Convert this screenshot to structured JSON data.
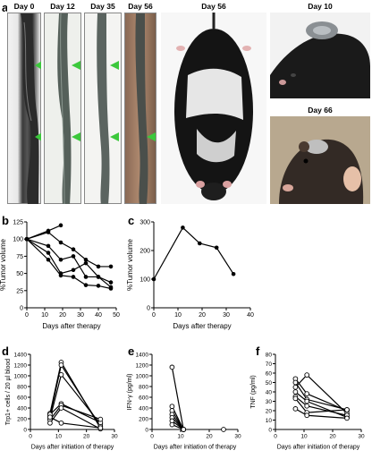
{
  "panels": {
    "a": "a",
    "b": "b",
    "c": "c",
    "d": "d",
    "e": "e",
    "f": "f"
  },
  "photos": {
    "day0": "Day 0",
    "day12": "Day 12",
    "day35": "Day 35",
    "day56_tail": "Day 56",
    "day56_mouse": "Day 56",
    "day10": "Day 10",
    "day66": "Day 66"
  },
  "colors": {
    "arrow": "#3cc83c",
    "fur_black": "#141414",
    "fur_white": "#e6e6e6",
    "background_glove": "#f2f2f2"
  },
  "chart_data": [
    {
      "id": "b",
      "type": "line",
      "xlabel": "Days after therapy",
      "ylabel": "%Tumor volume",
      "xlim": [
        0,
        50
      ],
      "ylim": [
        0,
        125
      ],
      "xticks": [
        0,
        10,
        20,
        30,
        40,
        50
      ],
      "yticks": [
        0,
        25,
        50,
        75,
        100,
        125
      ],
      "marker": "filled",
      "series": [
        {
          "x": [
            0,
            12,
            19
          ],
          "y": [
            100,
            112,
            120
          ]
        },
        {
          "x": [
            0,
            12,
            19,
            26,
            33,
            40,
            47
          ],
          "y": [
            100,
            110,
            95,
            85,
            70,
            60,
            60
          ]
        },
        {
          "x": [
            0,
            12,
            19,
            26,
            33,
            40,
            47
          ],
          "y": [
            100,
            90,
            70,
            75,
            45,
            45,
            30
          ]
        },
        {
          "x": [
            0,
            12,
            19,
            26,
            33,
            40,
            47
          ],
          "y": [
            100,
            80,
            50,
            55,
            65,
            45,
            37
          ]
        },
        {
          "x": [
            0,
            12,
            19,
            26,
            33,
            40,
            47
          ],
          "y": [
            100,
            70,
            47,
            45,
            33,
            32,
            28
          ]
        }
      ]
    },
    {
      "id": "c",
      "type": "line",
      "xlabel": "Days after therapy",
      "ylabel": "%Tumor volume",
      "xlim": [
        0,
        40
      ],
      "ylim": [
        0,
        300
      ],
      "xticks": [
        0,
        10,
        20,
        30,
        40
      ],
      "yticks": [
        0,
        100,
        200,
        300
      ],
      "marker": "filled",
      "series": [
        {
          "x": [
            0,
            12,
            19,
            26,
            33
          ],
          "y": [
            100,
            280,
            225,
            210,
            118
          ]
        }
      ]
    },
    {
      "id": "d",
      "type": "line",
      "xlabel": "Days after initiation of therapy",
      "ylabel": "Trp1+ cells / 20 µl blood",
      "xlim": [
        0,
        30
      ],
      "ylim": [
        0,
        1400
      ],
      "xticks": [
        0,
        10,
        20,
        30
      ],
      "yticks": [
        0,
        200,
        400,
        600,
        800,
        1000,
        1200,
        1400
      ],
      "marker": "open",
      "series": [
        {
          "x": [
            7,
            11,
            25
          ],
          "y": [
            300,
            1250,
            25
          ]
        },
        {
          "x": [
            7,
            11,
            25
          ],
          "y": [
            250,
            1200,
            60
          ]
        },
        {
          "x": [
            7,
            11,
            25
          ],
          "y": [
            200,
            1020,
            100
          ]
        },
        {
          "x": [
            7,
            11,
            25
          ],
          "y": [
            280,
            480,
            130
          ]
        },
        {
          "x": [
            7,
            11,
            25
          ],
          "y": [
            180,
            450,
            190
          ]
        },
        {
          "x": [
            7,
            11,
            25
          ],
          "y": [
            120,
            400,
            10
          ]
        },
        {
          "x": [
            7,
            11,
            25
          ],
          "y": [
            230,
            120,
            30
          ]
        }
      ]
    },
    {
      "id": "e",
      "type": "line",
      "xlabel": "Days after initiation of therapy",
      "ylabel": "IFN-γ (pg/ml)",
      "xlim": [
        0,
        30
      ],
      "ylim": [
        0,
        1400
      ],
      "xticks": [
        0,
        10,
        20,
        30
      ],
      "yticks": [
        0,
        200,
        400,
        600,
        800,
        1000,
        1200,
        1400
      ],
      "marker": "open",
      "series": [
        {
          "x": [
            7,
            11
          ],
          "y": [
            1160,
            0
          ]
        },
        {
          "x": [
            7,
            11
          ],
          "y": [
            430,
            0
          ]
        },
        {
          "x": [
            7,
            11
          ],
          "y": [
            350,
            0
          ]
        },
        {
          "x": [
            7,
            11
          ],
          "y": [
            280,
            0
          ]
        },
        {
          "x": [
            7,
            11
          ],
          "y": [
            220,
            0
          ]
        },
        {
          "x": [
            7,
            11
          ],
          "y": [
            160,
            0
          ]
        },
        {
          "x": [
            7,
            11
          ],
          "y": [
            90,
            0
          ]
        },
        {
          "x": [
            25
          ],
          "y": [
            0
          ]
        }
      ]
    },
    {
      "id": "f",
      "type": "line",
      "xlabel": "Days after initiation of therapy",
      "ylabel": "TNF (pg/ml)",
      "xlim": [
        0,
        30
      ],
      "ylim": [
        0,
        80
      ],
      "xticks": [
        0,
        10,
        20,
        30
      ],
      "yticks": [
        0,
        10,
        20,
        30,
        40,
        50,
        60,
        70,
        80
      ],
      "marker": "open",
      "series": [
        {
          "x": [
            7,
            11,
            25
          ],
          "y": [
            54,
            38,
            20
          ]
        },
        {
          "x": [
            7,
            11,
            25
          ],
          "y": [
            50,
            32,
            21
          ]
        },
        {
          "x": [
            7,
            11,
            25
          ],
          "y": [
            45,
            58,
            17
          ]
        },
        {
          "x": [
            7,
            11,
            25
          ],
          "y": [
            40,
            30,
            13
          ]
        },
        {
          "x": [
            7,
            11,
            25
          ],
          "y": [
            35,
            25,
            15
          ]
        },
        {
          "x": [
            7,
            11,
            25
          ],
          "y": [
            33,
            18,
            21
          ]
        },
        {
          "x": [
            7,
            11,
            25
          ],
          "y": [
            22,
            15,
            12
          ]
        }
      ]
    }
  ]
}
